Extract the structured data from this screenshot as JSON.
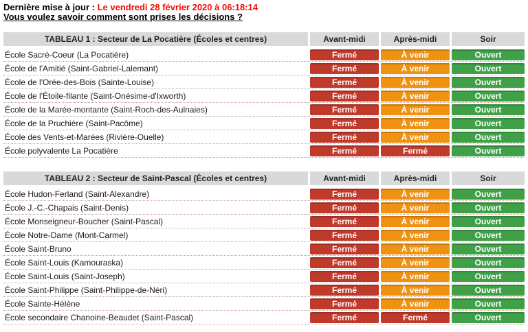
{
  "colors": {
    "update_red": "#f20d00",
    "header_gray": "#d9d9d9",
    "status": {
      "Fermé": "#c03a2c",
      "À venir": "#ef9211",
      "Ouvert": "#3fa047"
    }
  },
  "header": {
    "last_update_label": "Dernière mise à jour :",
    "last_update_value": "Le vendredi 28 février 2020 à 06:18:14",
    "decisions_link": "Vous voulez savoir comment sont prises les décisions ?"
  },
  "columns": [
    "Avant-midi",
    "Après-midi",
    "Soir"
  ],
  "tables": [
    {
      "title": "TABLEAU 1 : Secteur de La Pocatière (Écoles et centres)",
      "rows": [
        {
          "name": "École Sacré-Coeur (La Pocatière)",
          "statuses": [
            "Fermé",
            "À venir",
            "Ouvert"
          ]
        },
        {
          "name": "École de l'Amitié (Saint-Gabriel-Lalemant)",
          "statuses": [
            "Fermé",
            "À venir",
            "Ouvert"
          ]
        },
        {
          "name": "École de l'Orée-des-Bois (Sainte-Louise)",
          "statuses": [
            "Fermé",
            "À venir",
            "Ouvert"
          ]
        },
        {
          "name": "École de l'Étoile-filante (Saint-Onésime-d'Ixworth)",
          "statuses": [
            "Fermé",
            "À venir",
            "Ouvert"
          ]
        },
        {
          "name": "École de la Marée-montante (Saint-Roch-des-Aulnaies)",
          "statuses": [
            "Fermé",
            "À venir",
            "Ouvert"
          ]
        },
        {
          "name": "École de la Pruchière (Saint-Pacôme)",
          "statuses": [
            "Fermé",
            "À venir",
            "Ouvert"
          ]
        },
        {
          "name": "École des Vents-et-Marées (Rivière-Ouelle)",
          "statuses": [
            "Fermé",
            "À venir",
            "Ouvert"
          ]
        },
        {
          "name": "École polyvalente La Pocatière",
          "statuses": [
            "Fermé",
            "Fermé",
            "Ouvert"
          ]
        }
      ]
    },
    {
      "title": "TABLEAU 2 : Secteur de Saint-Pascal (Écoles et centres)",
      "rows": [
        {
          "name": "École Hudon-Ferland (Saint-Alexandre)",
          "statuses": [
            "Fermé",
            "À venir",
            "Ouvert"
          ]
        },
        {
          "name": "École J.-C.-Chapais (Saint-Denis)",
          "statuses": [
            "Fermé",
            "À venir",
            "Ouvert"
          ]
        },
        {
          "name": "École Monseigneur-Boucher (Saint-Pascal)",
          "statuses": [
            "Fermé",
            "À venir",
            "Ouvert"
          ]
        },
        {
          "name": "École Notre-Dame (Mont-Carmel)",
          "statuses": [
            "Fermé",
            "À venir",
            "Ouvert"
          ]
        },
        {
          "name": "École Saint-Bruno",
          "statuses": [
            "Fermé",
            "À venir",
            "Ouvert"
          ]
        },
        {
          "name": "École Saint-Louis (Kamouraska)",
          "statuses": [
            "Fermé",
            "À venir",
            "Ouvert"
          ]
        },
        {
          "name": "École Saint-Louis (Saint-Joseph)",
          "statuses": [
            "Fermé",
            "À venir",
            "Ouvert"
          ]
        },
        {
          "name": "École Saint-Philippe (Saint-Philippe-de-Néri)",
          "statuses": [
            "Fermé",
            "À venir",
            "Ouvert"
          ]
        },
        {
          "name": "École Sainte-Hélène",
          "statuses": [
            "Fermé",
            "À venir",
            "Ouvert"
          ]
        },
        {
          "name": "École secondaire Chanoine-Beaudet (Saint-Pascal)",
          "statuses": [
            "Fermé",
            "Fermé",
            "Ouvert"
          ]
        }
      ]
    }
  ]
}
